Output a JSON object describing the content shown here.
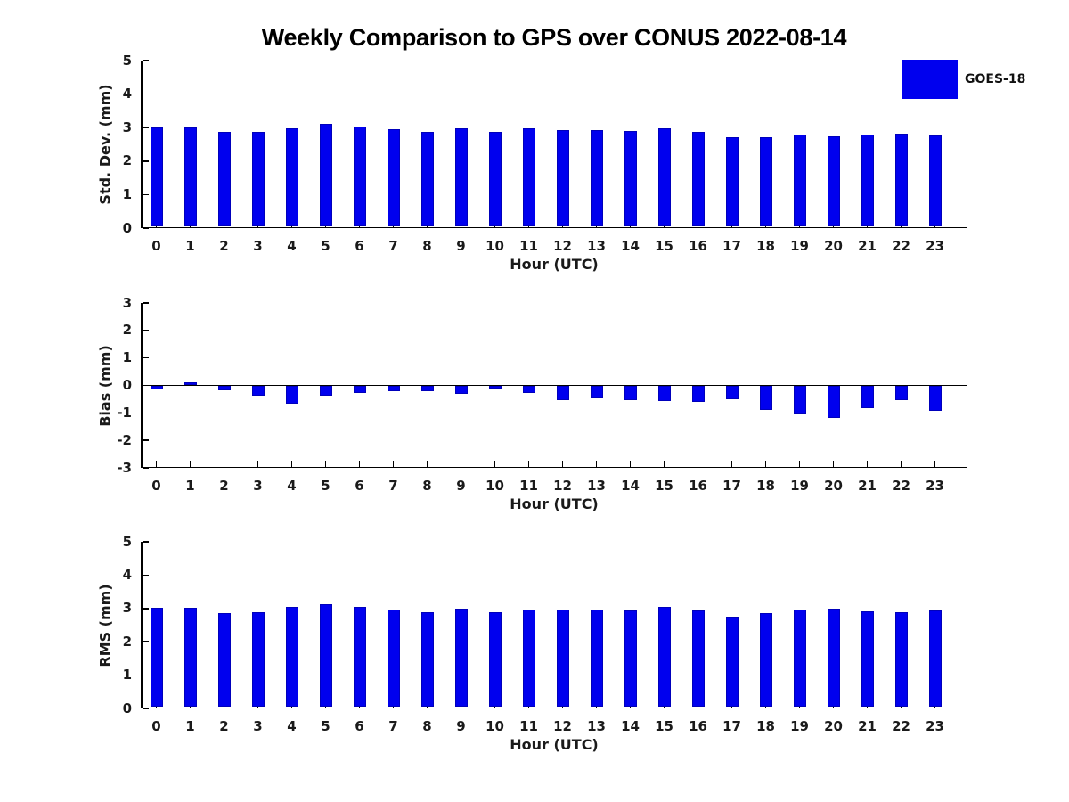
{
  "title": "Weekly Comparison to GPS over CONUS 2022-08-14",
  "legend": {
    "label": "GOES-18",
    "position": "upper right outside axes"
  },
  "colors": {
    "bar_fill": "#0000EE",
    "bar_edge": "#0000BB",
    "axis": "#000000",
    "text": "#1a1a1a",
    "background": "#ffffff"
  },
  "chart_data": [
    {
      "id": "std-dev",
      "type": "bar",
      "title": "",
      "xlabel": "Hour (UTC)",
      "ylabel": "Std. Dev. (mm)",
      "ylim": [
        0,
        5
      ],
      "yticks": [
        0,
        1,
        2,
        3,
        4,
        5
      ],
      "grid": false,
      "categories": [
        "0",
        "1",
        "2",
        "3",
        "4",
        "5",
        "6",
        "7",
        "8",
        "9",
        "10",
        "11",
        "12",
        "13",
        "14",
        "15",
        "16",
        "17",
        "18",
        "19",
        "20",
        "21",
        "22",
        "23"
      ],
      "series": [
        {
          "name": "GOES-18",
          "values": [
            2.96,
            2.96,
            2.83,
            2.83,
            2.93,
            3.07,
            2.99,
            2.9,
            2.83,
            2.93,
            2.83,
            2.93,
            2.89,
            2.89,
            2.85,
            2.95,
            2.84,
            2.66,
            2.68,
            2.75,
            2.71,
            2.76,
            2.79,
            2.73
          ]
        }
      ]
    },
    {
      "id": "bias",
      "type": "bar",
      "title": "",
      "xlabel": "Hour (UTC)",
      "ylabel": "Bias (mm)",
      "ylim": [
        -3,
        3
      ],
      "yticks": [
        -3,
        -2,
        -1,
        0,
        1,
        2,
        3
      ],
      "grid": false,
      "categories": [
        "0",
        "1",
        "2",
        "3",
        "4",
        "5",
        "6",
        "7",
        "8",
        "9",
        "10",
        "11",
        "12",
        "13",
        "14",
        "15",
        "16",
        "17",
        "18",
        "19",
        "20",
        "21",
        "22",
        "23"
      ],
      "series": [
        {
          "name": "GOES-18",
          "values": [
            -0.14,
            0.1,
            -0.17,
            -0.36,
            -0.67,
            -0.37,
            -0.27,
            -0.22,
            -0.22,
            -0.32,
            -0.1,
            -0.28,
            -0.55,
            -0.47,
            -0.55,
            -0.58,
            -0.6,
            -0.5,
            -0.9,
            -1.05,
            -1.18,
            -0.82,
            -0.54,
            -0.93
          ]
        }
      ]
    },
    {
      "id": "rms",
      "type": "bar",
      "title": "",
      "xlabel": "Hour (UTC)",
      "ylabel": "RMS (mm)",
      "ylim": [
        0,
        5
      ],
      "yticks": [
        0,
        1,
        2,
        3,
        4,
        5
      ],
      "grid": false,
      "categories": [
        "0",
        "1",
        "2",
        "3",
        "4",
        "5",
        "6",
        "7",
        "8",
        "9",
        "10",
        "11",
        "12",
        "13",
        "14",
        "15",
        "16",
        "17",
        "18",
        "19",
        "20",
        "21",
        "22",
        "23"
      ],
      "series": [
        {
          "name": "GOES-18",
          "values": [
            2.97,
            2.97,
            2.83,
            2.85,
            3.0,
            3.08,
            3.0,
            2.92,
            2.85,
            2.96,
            2.84,
            2.93,
            2.93,
            2.92,
            2.91,
            3.01,
            2.89,
            2.71,
            2.83,
            2.93,
            2.95,
            2.88,
            2.85,
            2.89
          ]
        }
      ]
    }
  ]
}
